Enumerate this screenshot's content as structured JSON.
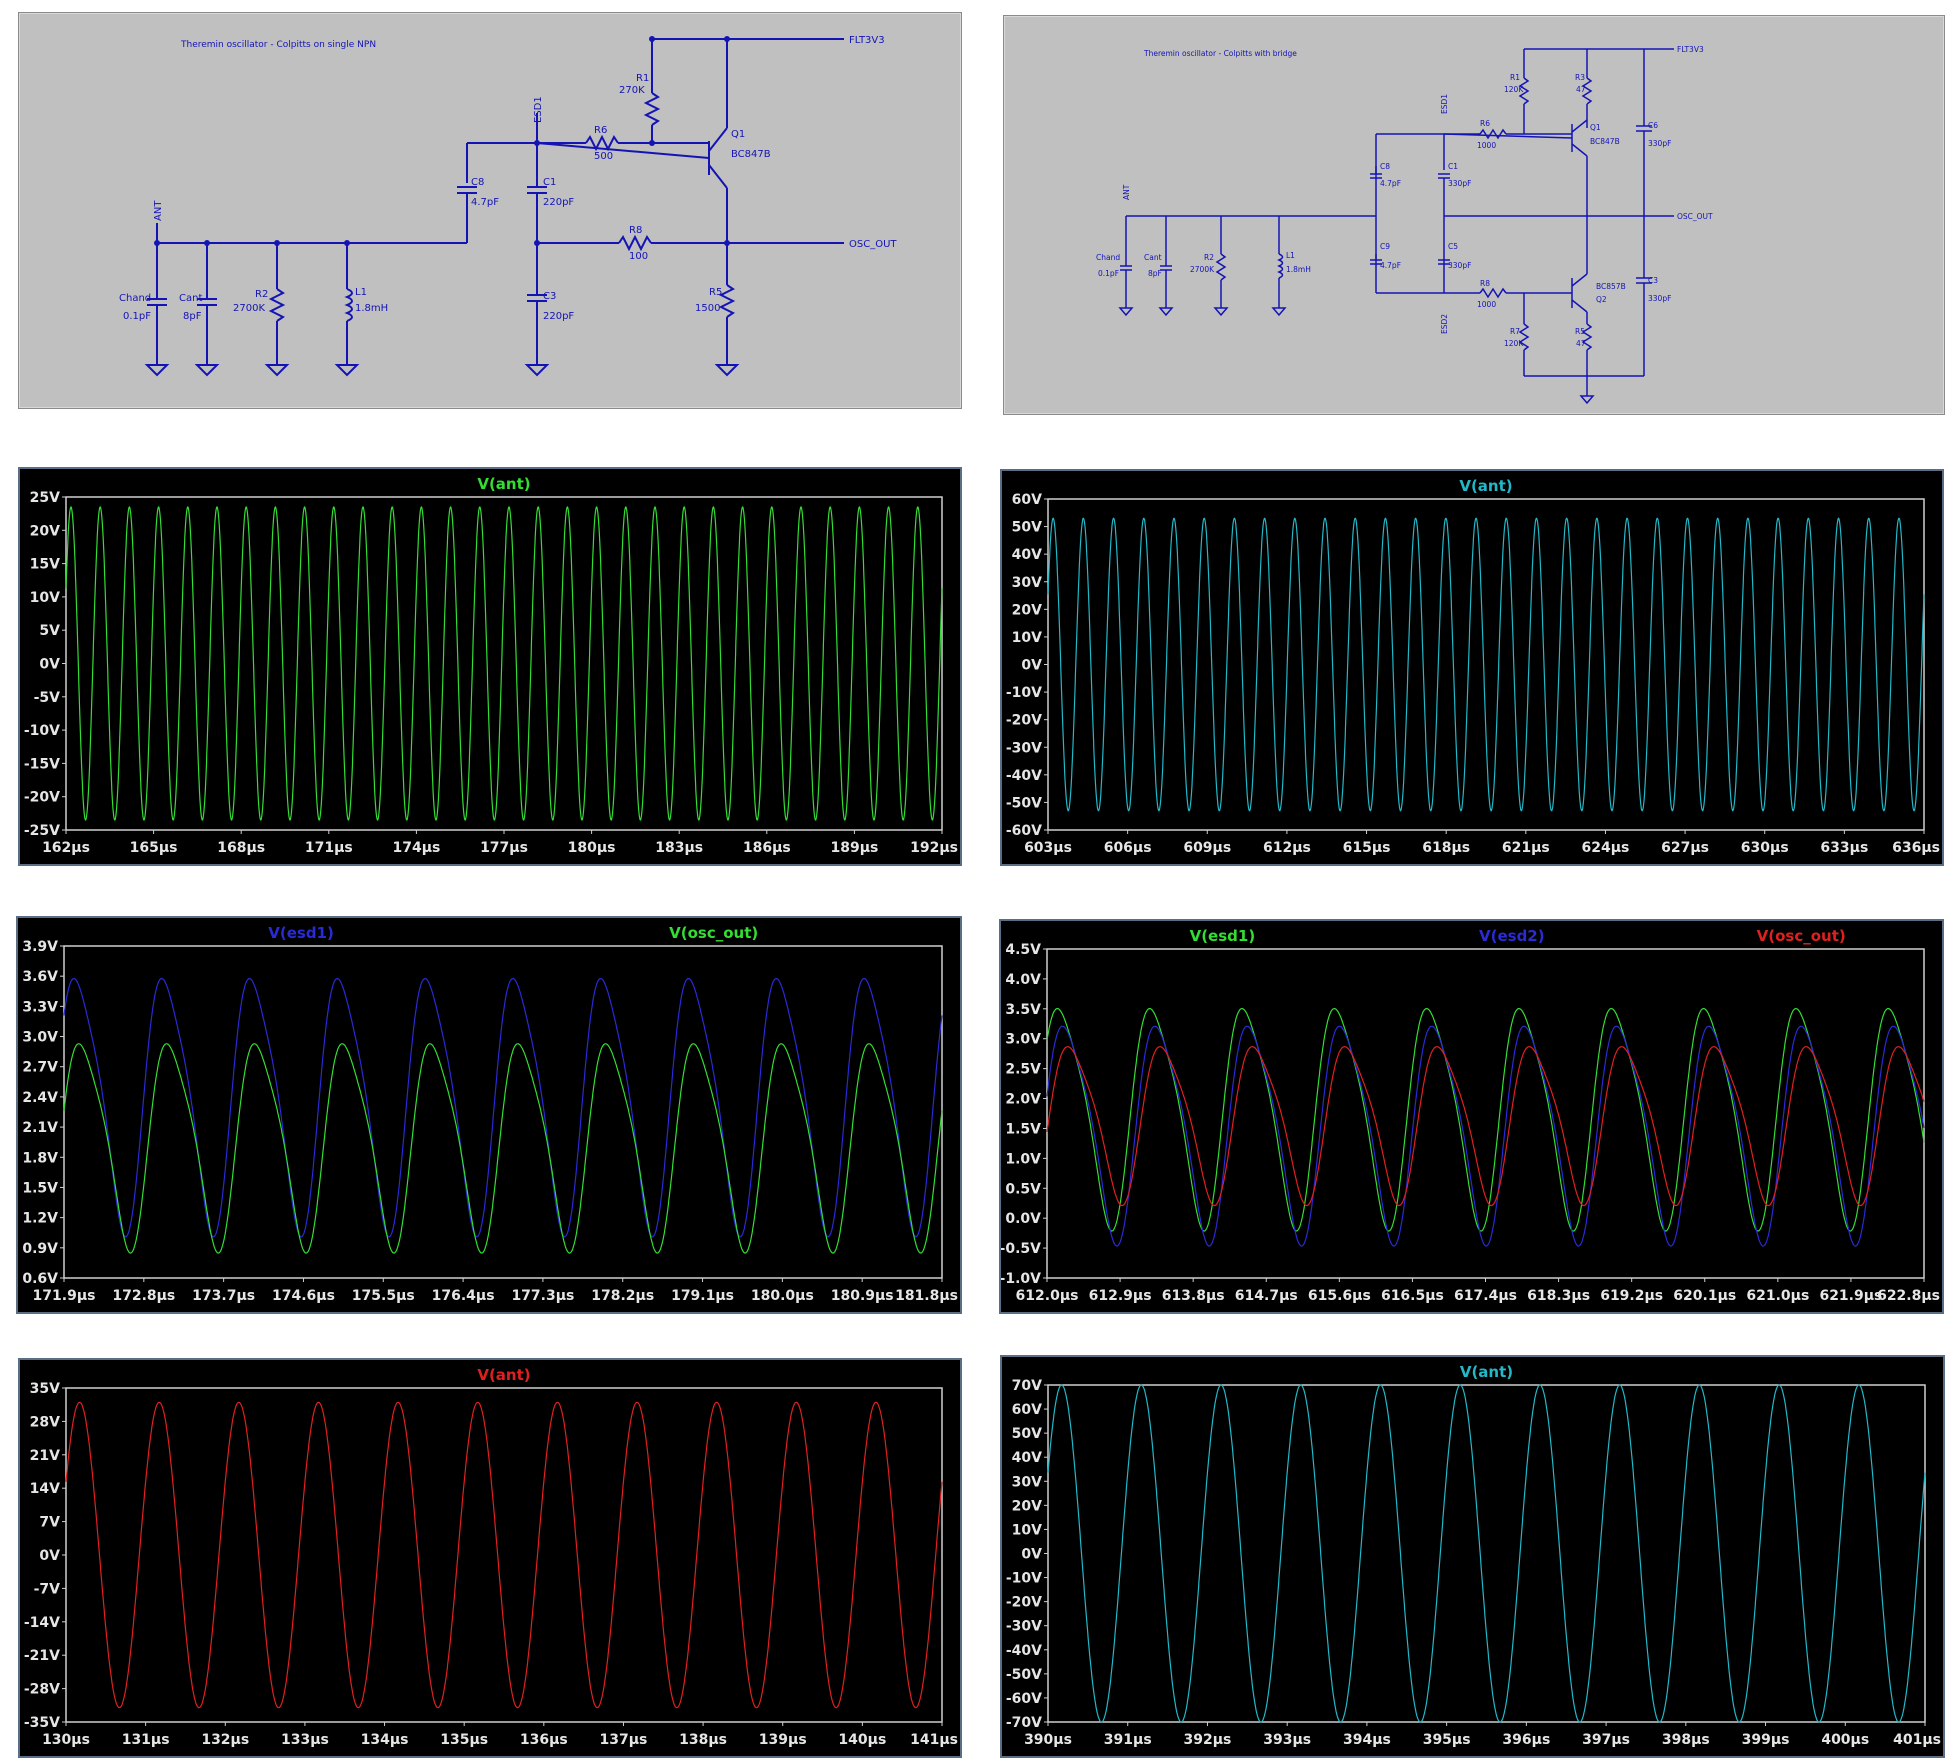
{
  "schematics": {
    "single": {
      "title": "Theremin oscillator - Colpitts on single NPN",
      "labels": {
        "flt": "FLT3V3",
        "osc": "OSC_OUT",
        "ant": "ANT",
        "esd1": "ESD1",
        "r1": "R1",
        "r1v": "270K",
        "q1": "Q1",
        "q1v": "BC847B",
        "r6": "R6",
        "r6v": "500",
        "c8": "C8",
        "c8v": "4.7pF",
        "c1": "C1",
        "c1v": "220pF",
        "r8": "R8",
        "r8v": "100",
        "c3": "C3",
        "c3v": "220pF",
        "r5": "R5",
        "r5v": "1500",
        "chand": "Chand",
        "chandv": "0.1pF",
        "cant": "Cant",
        "cantv": "8pF",
        "r2": "R2",
        "r2v": "2700K",
        "l1": "L1",
        "l1v": "1.8mH"
      }
    },
    "bridge": {
      "title": "Theremin oscillator - Colpitts with bridge",
      "labels": {
        "flt": "FLT3V3",
        "osc": "OSC_OUT",
        "ant": "ANT",
        "esd1": "ESD1",
        "esd2": "ESD2",
        "r1": "R1",
        "r1v": "120K",
        "r3": "R3",
        "r3v": "47",
        "q1": "Q1",
        "q1v": "BC847B",
        "c6": "C6",
        "c6v": "330pF",
        "r6": "R6",
        "r6v": "1000",
        "c8": "C8",
        "c8v": "4.7pF",
        "c1": "C1",
        "c1v": "330pF",
        "c9": "C9",
        "c9v": "4.7pF",
        "c5": "C5",
        "c5v": "330pF",
        "r8": "R8",
        "r8v": "1000",
        "q2v": "BC857B",
        "q2": "Q2",
        "c3": "C3",
        "c3v": "330pF",
        "r7": "R7",
        "r7v": "120K",
        "r5": "R5",
        "r5v": "47",
        "chand": "Chand",
        "chandv": "0.1pF",
        "cant": "Cant",
        "cantv": "8pF",
        "r2": "R2",
        "r2v": "2700K",
        "l1": "L1",
        "l1v": "1.8mH"
      }
    }
  },
  "chart_data": [
    {
      "type": "line",
      "id": "ant_single_short",
      "x_ticks": [
        "162µs",
        "165µs",
        "168µs",
        "171µs",
        "174µs",
        "177µs",
        "180µs",
        "183µs",
        "186µs",
        "189µs",
        "192µs"
      ],
      "y_ticks": [
        "25V",
        "20V",
        "15V",
        "10V",
        "5V",
        "0V",
        "-5V",
        "-10V",
        "-15V",
        "-20V",
        "-25V"
      ],
      "xlim": [
        162,
        192
      ],
      "ylim": [
        -25,
        25
      ],
      "series": [
        {
          "name": "V(ant)",
          "color": "#33dd33",
          "amplitude": 23.5,
          "offset": 0,
          "cycles": 30
        }
      ]
    },
    {
      "type": "line",
      "id": "ant_bridge_short",
      "x_ticks": [
        "603µs",
        "606µs",
        "609µs",
        "612µs",
        "615µs",
        "618µs",
        "621µs",
        "624µs",
        "627µs",
        "630µs",
        "633µs",
        "636µs"
      ],
      "y_ticks": [
        "60V",
        "50V",
        "40V",
        "30V",
        "20V",
        "10V",
        "0V",
        "-10V",
        "-20V",
        "-30V",
        "-40V",
        "-50V",
        "-60V"
      ],
      "xlim": [
        603,
        636
      ],
      "ylim": [
        -60,
        60
      ],
      "series": [
        {
          "name": "V(ant)",
          "color": "#22b8c8",
          "amplitude": 53,
          "offset": 0,
          "cycles": 29
        }
      ]
    },
    {
      "type": "line",
      "id": "esd_single",
      "x_ticks": [
        "171.9µs",
        "172.8µs",
        "173.7µs",
        "174.6µs",
        "175.5µs",
        "176.4µs",
        "177.3µs",
        "178.2µs",
        "179.1µs",
        "180.0µs",
        "180.9µs",
        "181.8µs"
      ],
      "y_ticks": [
        "3.9V",
        "3.6V",
        "3.3V",
        "3.0V",
        "2.7V",
        "2.4V",
        "2.1V",
        "1.8V",
        "1.5V",
        "1.2V",
        "0.9V",
        "0.6V"
      ],
      "xlim": [
        171.9,
        181.8
      ],
      "ylim": [
        0.6,
        3.9
      ],
      "series": [
        {
          "name": "V(esd1)",
          "color": "#2a2ad6",
          "min": 0.95,
          "max": 3.85,
          "cycles": 10
        },
        {
          "name": "V(osc_out)",
          "color": "#33dd33",
          "min": 0.8,
          "max": 3.15,
          "cycles": 10
        }
      ]
    },
    {
      "type": "line",
      "id": "esd_bridge",
      "x_ticks": [
        "612.0µs",
        "612.9µs",
        "613.8µs",
        "614.7µs",
        "615.6µs",
        "616.5µs",
        "617.4µs",
        "618.3µs",
        "619.2µs",
        "620.1µs",
        "621.0µs",
        "621.9µs",
        "622.8µs"
      ],
      "y_ticks": [
        "4.5V",
        "4.0V",
        "3.5V",
        "3.0V",
        "2.5V",
        "2.0V",
        "1.5V",
        "1.0V",
        "0.5V",
        "0.0V",
        "-0.5V",
        "-1.0V"
      ],
      "xlim": [
        612.0,
        622.8
      ],
      "ylim": [
        -1.0,
        4.5
      ],
      "series": [
        {
          "name": "V(esd1)",
          "color": "#33dd33",
          "min": -0.3,
          "max": 3.9,
          "cycles": 9.5
        },
        {
          "name": "V(esd2)",
          "color": "#2a2ad6",
          "min": -0.55,
          "max": 3.6,
          "cycles": 9.5
        },
        {
          "name": "V(osc_out)",
          "color": "#e02020",
          "min": 0.15,
          "max": 3.15,
          "cycles": 9.5
        }
      ]
    },
    {
      "type": "line",
      "id": "ant_single_long",
      "x_ticks": [
        "130µs",
        "131µs",
        "132µs",
        "133µs",
        "134µs",
        "135µs",
        "136µs",
        "137µs",
        "138µs",
        "139µs",
        "140µs",
        "141µs"
      ],
      "y_ticks": [
        "35V",
        "28V",
        "21V",
        "14V",
        "7V",
        "0V",
        "-7V",
        "-14V",
        "-21V",
        "-28V",
        "-35V"
      ],
      "xlim": [
        130,
        141
      ],
      "ylim": [
        -35,
        35
      ],
      "series": [
        {
          "name": "V(ant)",
          "color": "#e02020",
          "amplitude": 32,
          "offset": 0,
          "cycles": 11
        }
      ]
    },
    {
      "type": "line",
      "id": "ant_bridge_long",
      "x_ticks": [
        "390µs",
        "391µs",
        "392µs",
        "393µs",
        "394µs",
        "395µs",
        "396µs",
        "397µs",
        "398µs",
        "399µs",
        "400µs",
        "401µs"
      ],
      "y_ticks": [
        "70V",
        "60V",
        "50V",
        "40V",
        "30V",
        "20V",
        "10V",
        "0V",
        "-10V",
        "-20V",
        "-30V",
        "-40V",
        "-50V",
        "-60V",
        "-70V"
      ],
      "xlim": [
        390,
        402
      ],
      "ylim": [
        -70,
        70
      ],
      "series": [
        {
          "name": "V(ant)",
          "color": "#22b8c8",
          "amplitude": 70,
          "offset": 0,
          "cycles": 11
        }
      ]
    }
  ]
}
